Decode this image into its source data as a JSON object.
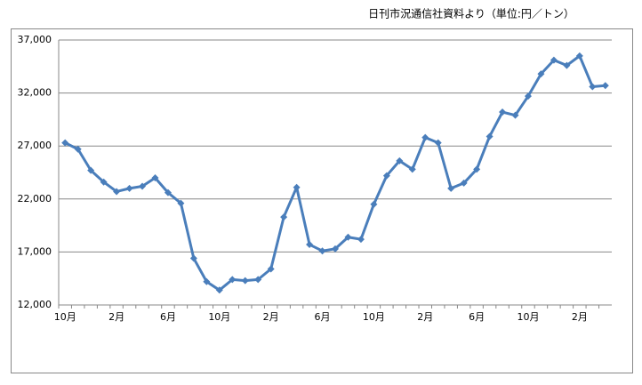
{
  "chart_data": {
    "type": "line",
    "title": "日刊市況通信社資料より（単位:円／トン）",
    "categories": [
      "10月",
      null,
      null,
      null,
      "2月",
      null,
      null,
      null,
      "6月",
      null,
      null,
      null,
      "10月",
      null,
      null,
      null,
      "2月",
      null,
      null,
      null,
      "6月",
      null,
      null,
      null,
      "10月",
      null,
      null,
      null,
      "2月",
      null,
      null,
      null,
      "6月",
      null,
      null,
      null,
      "10月",
      null,
      null,
      null,
      "2月",
      null,
      null
    ],
    "values": [
      27300,
      26700,
      24700,
      23600,
      22700,
      23000,
      23200,
      24000,
      22600,
      21600,
      16400,
      14200,
      13400,
      14400,
      14300,
      14400,
      15400,
      20300,
      23100,
      17700,
      17100,
      17300,
      18400,
      18200,
      21500,
      24200,
      25600,
      24800,
      27800,
      27300,
      23000,
      23500,
      24800,
      27900,
      30200,
      29900,
      31700,
      33800,
      35100,
      34600,
      35500,
      32600,
      32700
    ],
    "color": "#4a7ebb",
    "ylim": [
      12000,
      37000
    ],
    "yticks": [
      {
        "value": 12000,
        "label": "12,000"
      },
      {
        "value": 17000,
        "label": "17,000"
      },
      {
        "value": 22000,
        "label": "22,000"
      },
      {
        "value": 27000,
        "label": "27,000"
      },
      {
        "value": 32000,
        "label": "32,000"
      },
      {
        "value": 37000,
        "label": "37,000"
      }
    ],
    "grid": true
  }
}
